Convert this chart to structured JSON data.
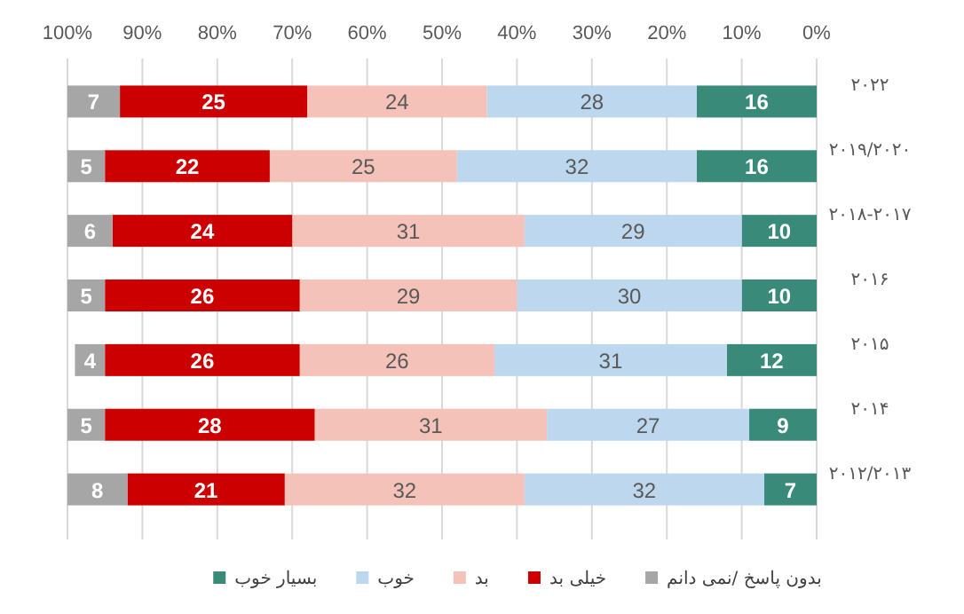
{
  "chart_data": {
    "type": "bar",
    "orientation": "horizontal",
    "stacked": true,
    "data_labels": true,
    "grid": "x",
    "legend": "bottom",
    "categories": [
      "۲۰۲۲",
      "۲۰۱۹/۲۰۲۰",
      "۲۰۱۸-۲۰۱۷",
      "۲۰۱۶",
      "۲۰۱۵",
      "۲۰۱۴",
      "۲۰۱۲/۲۰۱۳"
    ],
    "xlim": [
      100,
      0
    ],
    "xticks": [
      {
        "value": 100,
        "label": "100%"
      },
      {
        "value": 90,
        "label": "90%"
      },
      {
        "value": 80,
        "label": "80%"
      },
      {
        "value": 70,
        "label": "70%"
      },
      {
        "value": 60,
        "label": "60%"
      },
      {
        "value": 50,
        "label": "50%"
      },
      {
        "value": 40,
        "label": "40%"
      },
      {
        "value": 30,
        "label": "30%"
      },
      {
        "value": 20,
        "label": "20%"
      },
      {
        "value": 10,
        "label": "10%"
      },
      {
        "value": 0,
        "label": "0%"
      }
    ],
    "series": [
      {
        "name": "بسیار خوب",
        "color": "#3a8a7a",
        "values": [
          16,
          16,
          10,
          10,
          12,
          9,
          7
        ]
      },
      {
        "name": "خوب",
        "color": "#bdd7ee",
        "values": [
          28,
          32,
          29,
          30,
          31,
          27,
          32
        ]
      },
      {
        "name": "بد",
        "color": "#f4c2b8",
        "values": [
          24,
          25,
          31,
          29,
          26,
          31,
          32
        ]
      },
      {
        "name": "خیلی بد",
        "color": "#cc0000",
        "values": [
          25,
          22,
          24,
          26,
          26,
          28,
          21
        ]
      },
      {
        "name": "بدون پاسخ /نمی دانم",
        "color": "#a6a6a6",
        "values": [
          7,
          5,
          6,
          5,
          4,
          5,
          8
        ]
      }
    ]
  }
}
